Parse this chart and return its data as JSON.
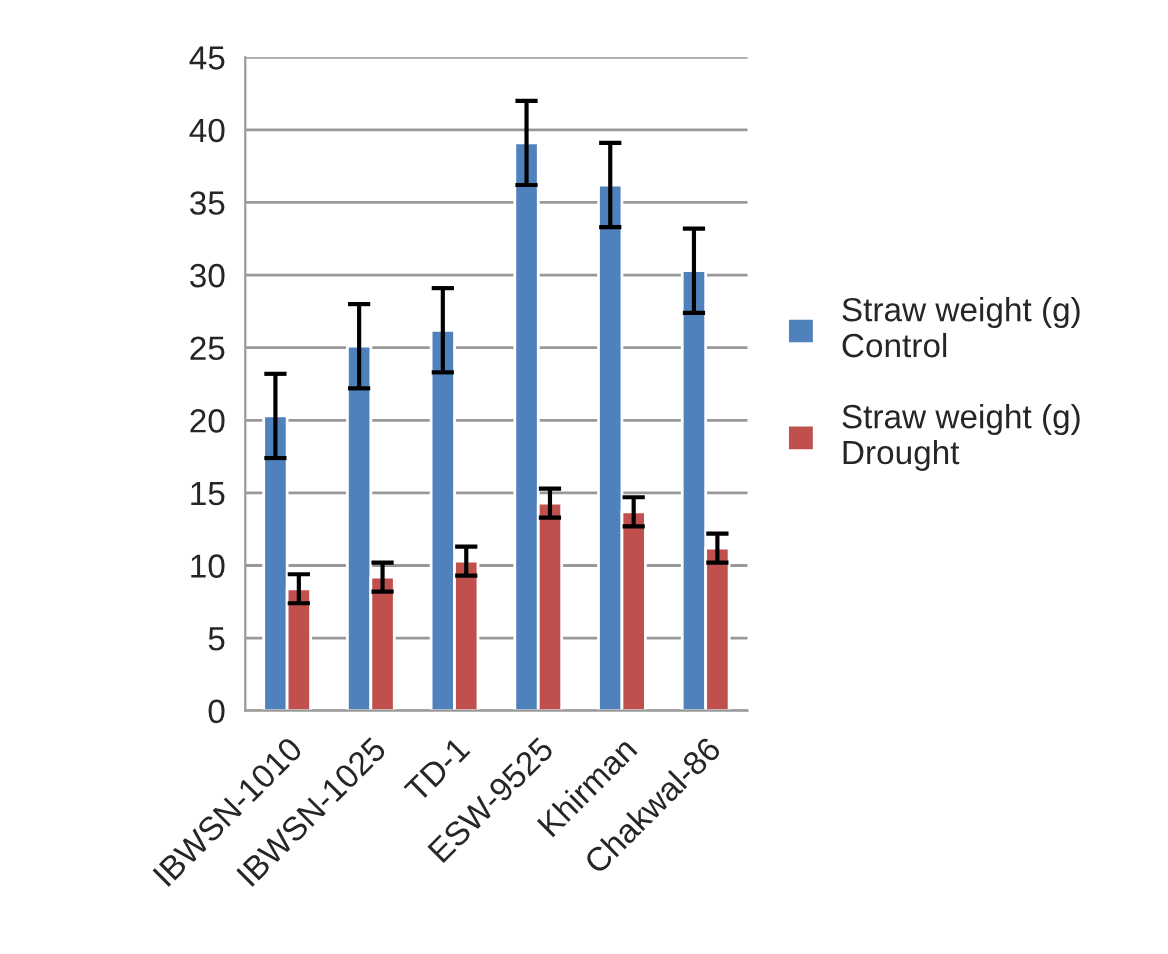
{
  "chart_data": {
    "type": "bar",
    "categories": [
      "IBWSN-1010",
      "IBWSN-1025",
      "TD-1",
      "ESW-9525",
      "Khirman",
      "Chakwal-86"
    ],
    "series": [
      {
        "name": "Straw weight (g) Control",
        "color": "#4f81bd",
        "values": [
          20.3,
          25.1,
          26.2,
          39.1,
          36.2,
          30.3
        ],
        "errors": [
          2.9,
          2.9,
          2.9,
          2.9,
          2.9,
          2.9
        ]
      },
      {
        "name": "Straw weight (g) Drought",
        "color": "#c0504d",
        "values": [
          8.4,
          9.2,
          10.3,
          14.3,
          13.7,
          11.2
        ],
        "errors": [
          1.0,
          1.0,
          1.0,
          1.0,
          1.0,
          1.0
        ]
      }
    ],
    "ylim": [
      0,
      45
    ],
    "yticks": [
      0,
      5,
      10,
      15,
      20,
      25,
      30,
      35,
      40,
      45
    ],
    "grid": "y",
    "legend": "right"
  }
}
